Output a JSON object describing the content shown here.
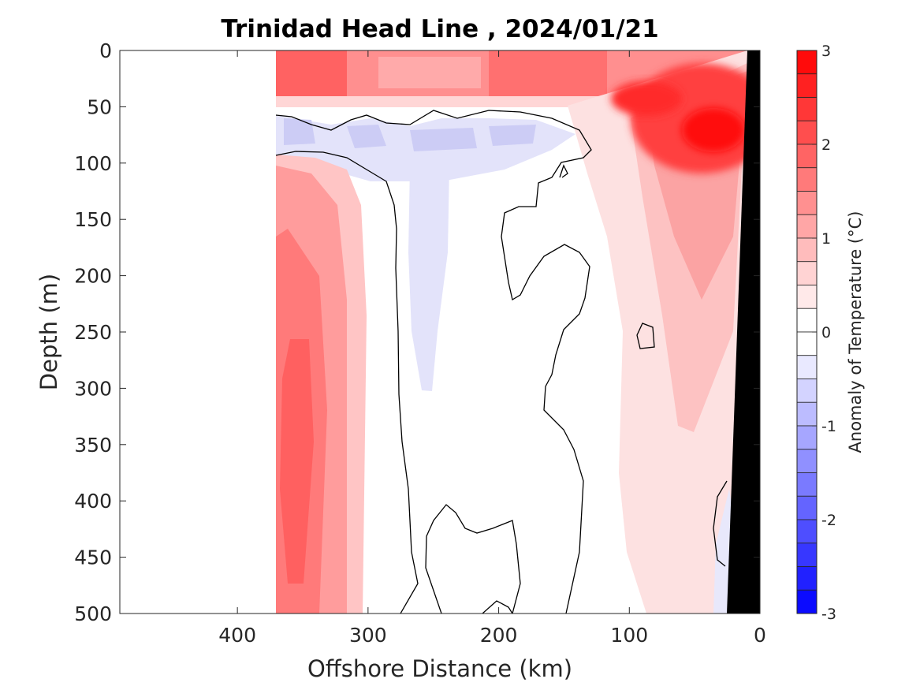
{
  "chart_data": {
    "type": "heatmap",
    "title": "Trinidad Head Line , 2024/01/21",
    "xlabel": "Offshore Distance (km)",
    "ylabel": "Depth (m)",
    "xlim": [
      490,
      0
    ],
    "ylim": [
      0,
      500
    ],
    "x_reversed": true,
    "y_reversed": true,
    "x_ticks": [
      400,
      300,
      200,
      100,
      0
    ],
    "y_ticks": [
      0,
      50,
      100,
      150,
      200,
      250,
      300,
      350,
      400,
      450,
      500
    ],
    "data_extent_km": [
      370,
      0
    ],
    "colorbar": {
      "label": "Anomaly of Temperature (°C)",
      "range": [
        -3,
        3
      ],
      "ticks": [
        3,
        2,
        1,
        0,
        -1,
        -2,
        -3
      ],
      "levels": 24,
      "colormap": "blue-white-red"
    },
    "contour_level": 0,
    "bathymetry_color": "#000000",
    "regions": [
      {
        "feature": "surface warm layer",
        "x_range": [
          370,
          10
        ],
        "depth_range": [
          0,
          55
        ],
        "anomaly": 1.5
      },
      {
        "feature": "nearshore warm core",
        "x_range": [
          120,
          20
        ],
        "depth_range": [
          20,
          100
        ],
        "anomaly": 2.8
      },
      {
        "feature": "subsurface cool band",
        "x_range": [
          370,
          130
        ],
        "depth_range": [
          55,
          100
        ],
        "anomaly": -0.5
      },
      {
        "feature": "cool tongue",
        "x_range": [
          270,
          200
        ],
        "depth_range": [
          100,
          300
        ],
        "anomaly": -0.25
      },
      {
        "feature": "offshore deep warm core",
        "x_range": [
          370,
          300
        ],
        "depth_range": [
          100,
          500
        ],
        "anomaly": 1.8
      },
      {
        "feature": "nearshore warm plume",
        "x_range": [
          110,
          30
        ],
        "depth_range": [
          100,
          350
        ],
        "anomaly": 0.8
      }
    ]
  }
}
